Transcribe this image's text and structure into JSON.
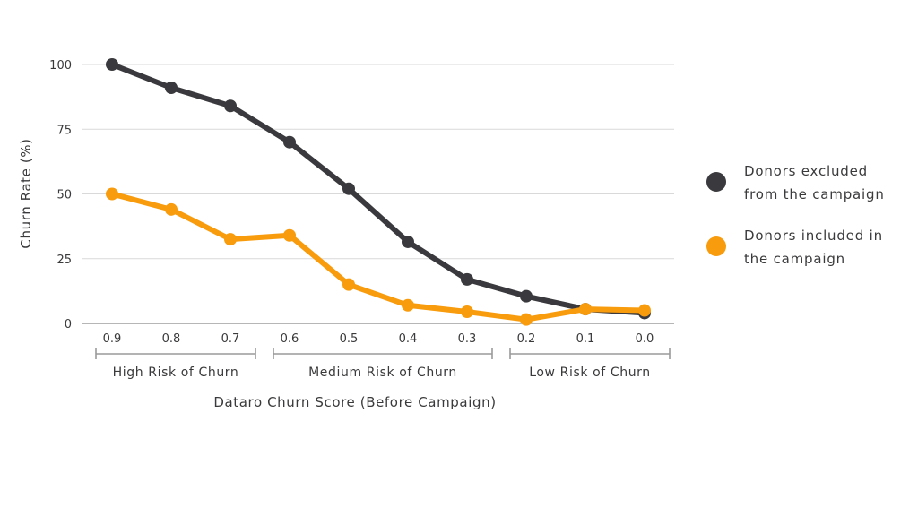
{
  "chart_data": {
    "type": "line",
    "xlabel": "Dataro Churn Score (Before Campaign)",
    "ylabel": "Churn Rate (%)",
    "ylim": [
      0,
      100
    ],
    "yticks": [
      0,
      25,
      50,
      75,
      100
    ],
    "categories": [
      "0.9",
      "0.8",
      "0.7",
      "0.6",
      "0.5",
      "0.4",
      "0.3",
      "0.2",
      "0.1",
      "0.0"
    ],
    "grid": "horizontal",
    "legend_position": "right",
    "series": [
      {
        "name": "Donors excluded from the campaign",
        "color": "#3a3a3e",
        "values": [
          100,
          91,
          84,
          70,
          52,
          31.5,
          17,
          10.5,
          5.5,
          4
        ]
      },
      {
        "name": "Donors included in the campaign",
        "color": "#f89c0e",
        "values": [
          50,
          44,
          32.5,
          34,
          15,
          7,
          4.5,
          1.5,
          5.5,
          5
        ]
      }
    ],
    "groups": [
      {
        "label": "High Risk of Churn",
        "from": 0,
        "to": 2
      },
      {
        "label": "Medium Risk of Churn",
        "from": 3,
        "to": 6
      },
      {
        "label": "Low Risk of Churn",
        "from": 7,
        "to": 9
      }
    ]
  }
}
